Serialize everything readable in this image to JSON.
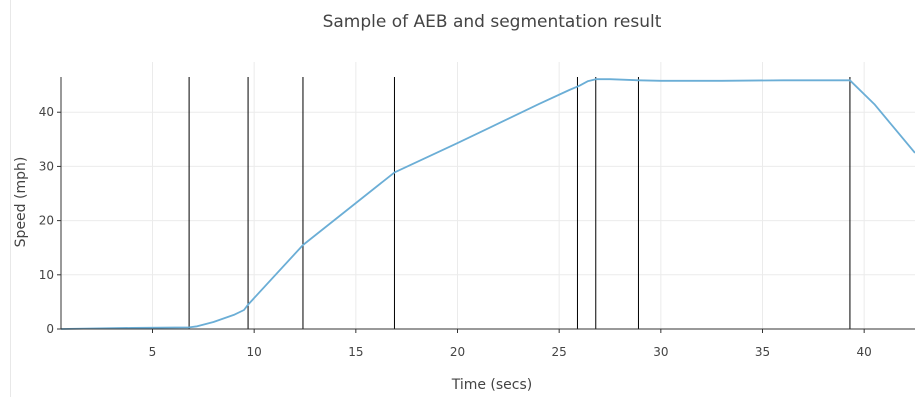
{
  "chart_data": {
    "type": "line",
    "title": "Sample of AEB and segmentation result",
    "xlabel": "Time (secs)",
    "ylabel": "Speed (mph)",
    "xlim": [
      0.5,
      42.5
    ],
    "ylim": [
      0,
      46.5
    ],
    "xticks": [
      5,
      10,
      15,
      20,
      25,
      30,
      35,
      40
    ],
    "yticks": [
      0,
      10,
      20,
      30,
      40
    ],
    "grid": true,
    "legend": "none",
    "colors": {
      "line": "#6baed6",
      "segment": "#000000",
      "grid": "#ebebeb",
      "axis": "#333333"
    },
    "series": [
      {
        "x": [
          0.5,
          2,
          4,
          6.8,
          7.2,
          8,
          9,
          9.5,
          9.7,
          12.4,
          16.9,
          20,
          22,
          24,
          25.5,
          26,
          26.4,
          26.8,
          27.5,
          28.9,
          30,
          33,
          36,
          39.3,
          40.5,
          42.5
        ],
        "y": [
          0,
          0.1,
          0.2,
          0.3,
          0.5,
          1.3,
          2.6,
          3.5,
          4.5,
          15.5,
          28.9,
          34.3,
          37.9,
          41.5,
          44.1,
          44.9,
          45.7,
          46.1,
          46.1,
          45.9,
          45.8,
          45.8,
          45.9,
          45.9,
          41.5,
          32.5
        ]
      }
    ],
    "segment_boundaries": [
      6.8,
      9.7,
      12.4,
      16.9,
      25.9,
      26.8,
      28.9,
      39.3
    ]
  }
}
